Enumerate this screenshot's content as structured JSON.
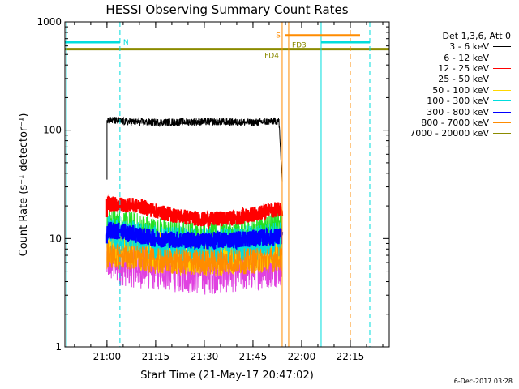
{
  "chart_data": {
    "type": "line",
    "title": "HESSI Observing Summary Count Rates",
    "xlabel": "Start Time (21-May-17 20:47:02)",
    "ylabel": "Count Rate (s⁻¹ detector⁻¹)",
    "yscale": "log",
    "ylim": [
      1,
      1000
    ],
    "y_ticks": [
      1,
      10,
      100,
      1000
    ],
    "xlim": [
      "20:47:02",
      "22:27:00"
    ],
    "x_ticks": [
      "21:00",
      "21:15",
      "21:30",
      "21:45",
      "22:00",
      "22:15"
    ],
    "legend": {
      "title": "Det 1,3,6, Att 0",
      "placement": "right"
    },
    "series": [
      {
        "name": "3 - 6 keV",
        "color": "#000000",
        "x": [
          "21:00",
          "21:05",
          "21:15",
          "21:30",
          "21:45",
          "21:53",
          "21:54"
        ],
        "values": [
          125,
          120,
          118,
          120,
          118,
          122,
          33
        ]
      },
      {
        "name": "6 - 12 keV",
        "color": "#e040e0",
        "x": [
          "21:00",
          "21:05",
          "21:15",
          "21:30",
          "21:45",
          "21:54"
        ],
        "values": [
          6.5,
          6.0,
          5.5,
          5.0,
          5.5,
          6.0
        ]
      },
      {
        "name": "12 - 25 keV",
        "color": "#ff0000",
        "x": [
          "21:00",
          "21:05",
          "21:10",
          "21:15",
          "21:20",
          "21:30",
          "21:40",
          "21:50",
          "21:54"
        ],
        "values": [
          21,
          20.5,
          20,
          18,
          16.5,
          15,
          15.5,
          18,
          19
        ]
      },
      {
        "name": "25 - 50 keV",
        "color": "#22e022",
        "x": [
          "21:00",
          "21:05",
          "21:15",
          "21:30",
          "21:45",
          "21:54"
        ],
        "values": [
          14,
          13,
          11,
          10,
          11,
          13
        ]
      },
      {
        "name": "50 - 100 keV",
        "color": "#ffd700",
        "x": [
          "21:00",
          "21:05",
          "21:15",
          "21:30",
          "21:45",
          "21:54"
        ],
        "values": [
          9,
          8.5,
          7.5,
          7,
          7.5,
          8
        ]
      },
      {
        "name": "100 - 300 keV",
        "color": "#00dddd",
        "x": [
          "21:00",
          "21:05",
          "21:15",
          "21:30",
          "21:45",
          "21:54"
        ],
        "values": [
          11,
          10.5,
          9,
          8.5,
          9,
          10
        ]
      },
      {
        "name": "300 - 800 keV",
        "color": "#0000ff",
        "x": [
          "21:00",
          "21:05",
          "21:15",
          "21:30",
          "21:45",
          "21:54"
        ],
        "values": [
          12,
          11.5,
          10,
          9.5,
          10,
          10.5
        ]
      },
      {
        "name": "800 - 7000 keV",
        "color": "#ff8c00",
        "x": [
          "21:00",
          "21:05",
          "21:15",
          "21:30",
          "21:45",
          "21:54"
        ],
        "values": [
          7,
          6.8,
          6.2,
          6.0,
          6.2,
          6.5
        ]
      },
      {
        "name": "7000 - 20000 keV",
        "color": "#8b8b00",
        "x": [
          "20:47:02",
          "22:27:00"
        ],
        "values": [
          560,
          560
        ]
      }
    ],
    "flags": [
      {
        "label": "N",
        "color": "#00dddd",
        "start": "20:47:02",
        "end": "21:04",
        "level": 650
      },
      {
        "label": "N",
        "color": "#00dddd",
        "start": "22:06",
        "end": "22:21",
        "level": 650
      },
      {
        "label": "S",
        "color": "#ff8c00",
        "start": "21:55",
        "end": "22:18",
        "level": 750
      },
      {
        "label": "FD4",
        "color": "#8b8b00",
        "start": "20:47:02",
        "end": "21:54",
        "level": 560
      },
      {
        "label": "FD3",
        "color": "#8b8b00",
        "start": "21:55",
        "end": "22:27",
        "level": 560
      }
    ],
    "vertical_lines": [
      {
        "time": "20:47:30",
        "color": "#00dddd",
        "style": "solid"
      },
      {
        "time": "21:04",
        "color": "#00dddd",
        "style": "dashed"
      },
      {
        "time": "21:54",
        "color": "#ff8c00",
        "style": "solid"
      },
      {
        "time": "21:56",
        "color": "#ff8c00",
        "style": "solid"
      },
      {
        "time": "22:06",
        "color": "#00dddd",
        "style": "solid"
      },
      {
        "time": "22:15",
        "color": "#ff8c00",
        "style": "dashed"
      },
      {
        "time": "22:21",
        "color": "#00dddd",
        "style": "dashed"
      }
    ]
  },
  "footer": {
    "date_stamp": "6-Dec-2017 03:28"
  }
}
